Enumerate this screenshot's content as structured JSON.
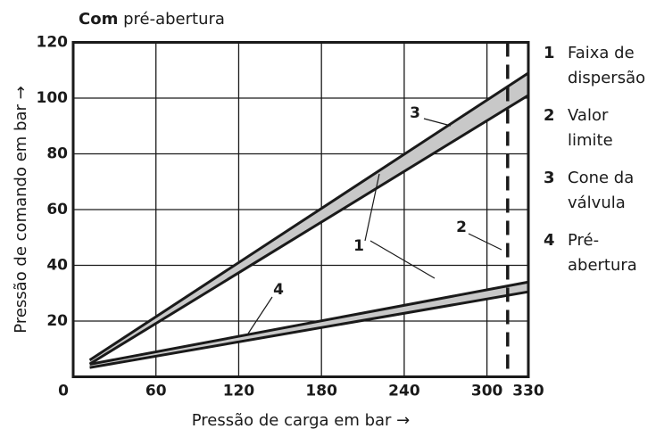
{
  "chart_data": {
    "type": "band",
    "title": {
      "bold": "Com",
      "rest": "pré-abertura"
    },
    "xlabel": "Pressão de carga em bar →",
    "ylabel": "Pressão de comando em bar →",
    "xlim": [
      0,
      330
    ],
    "xticks": [
      0,
      60,
      120,
      180,
      240,
      300,
      330
    ],
    "ylim": [
      0,
      120
    ],
    "yticks": [
      20,
      40,
      60,
      80,
      100,
      120
    ],
    "grid": true,
    "x": [
      12,
      330
    ],
    "line_color": "#1a1a1a",
    "band_fill": "#c8c8c8",
    "bands": [
      {
        "lower": [
          4.6,
          101
        ],
        "upper": [
          6,
          109
        ]
      },
      {
        "lower": [
          3.3,
          30.5
        ],
        "upper": [
          4.5,
          34
        ]
      }
    ],
    "reference_lines": [
      {
        "x": 315,
        "dashed": true
      }
    ],
    "annotations": [
      "1",
      "2",
      "3",
      "4"
    ],
    "legend": [
      {
        "number": "1",
        "text": [
          "Faixa de",
          "dispersão"
        ]
      },
      {
        "number": "2",
        "text": [
          "Valor",
          "limite"
        ]
      },
      {
        "number": "3",
        "text": [
          "Cone da",
          "válvula"
        ]
      },
      {
        "number": "4",
        "text": [
          "Pré-",
          "abertura"
        ]
      }
    ]
  }
}
